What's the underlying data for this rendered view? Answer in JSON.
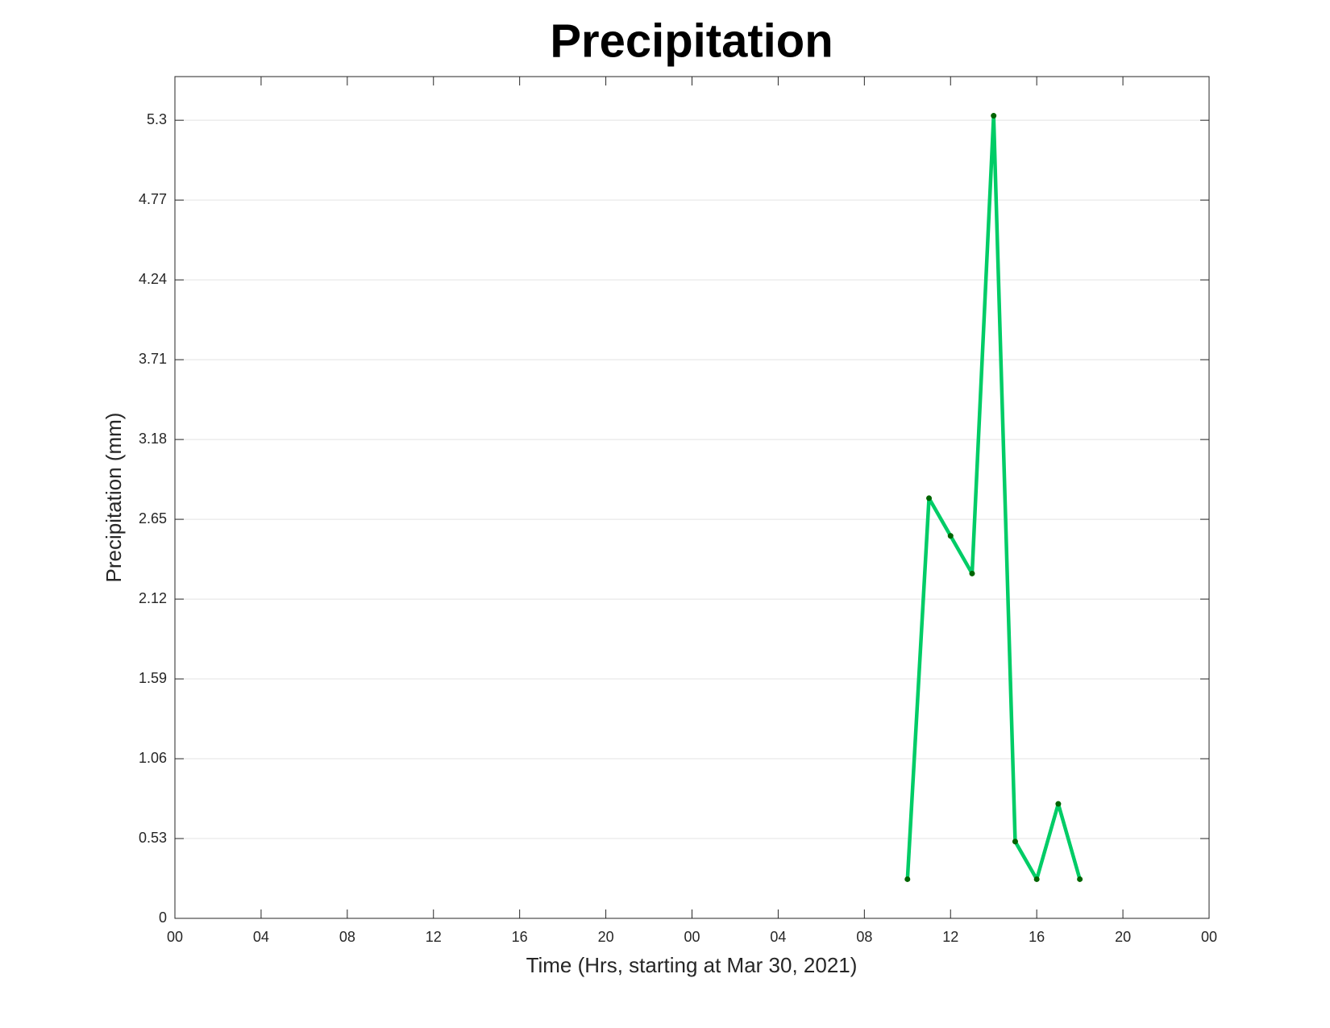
{
  "chart_data": {
    "type": "line",
    "title": "Precipitation",
    "xlabel": "Time (Hrs, starting at Mar 30, 2021)",
    "ylabel": "Precipitation (mm)",
    "x": [
      34,
      35,
      36,
      37,
      38,
      39,
      40,
      41,
      42
    ],
    "values": [
      0.26,
      2.79,
      2.54,
      2.29,
      5.33,
      0.51,
      0.26,
      0.76,
      0.26
    ],
    "color": "#00cc66",
    "marker_color": "#006400",
    "xlim": [
      0,
      48
    ],
    "xticks": [
      {
        "value": 0,
        "label": "00"
      },
      {
        "value": 4,
        "label": "04"
      },
      {
        "value": 8,
        "label": "08"
      },
      12,
      16,
      20,
      {
        "value": 24,
        "label": "00"
      },
      {
        "value": 28,
        "label": "04"
      },
      {
        "value": 32,
        "label": "08"
      },
      {
        "value": 36,
        "label": "12"
      },
      {
        "value": 40,
        "label": "16"
      },
      {
        "value": 44,
        "label": "20"
      },
      {
        "value": 48,
        "label": "00"
      }
    ],
    "ylim": [
      0,
      5.59
    ],
    "yticks": [
      0,
      0.53,
      1.06,
      1.59,
      2.12,
      2.65,
      3.18,
      3.71,
      4.24,
      4.77,
      5.3
    ],
    "grid": true
  }
}
